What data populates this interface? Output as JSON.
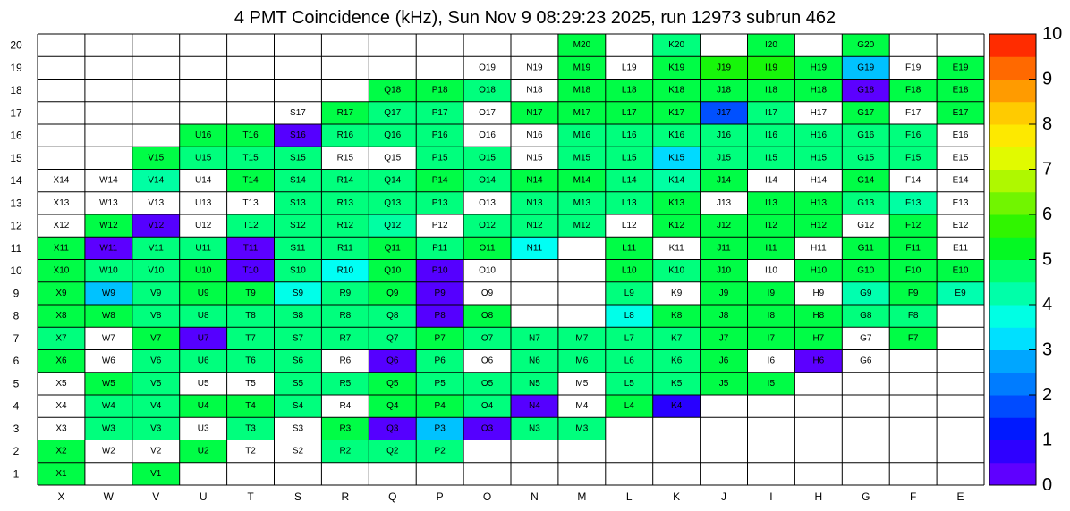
{
  "chart_data": {
    "type": "heatmap",
    "title": "4 PMT Coincidence (kHz), Sun Nov  9 08:29:23 2025, run 12973 subrun 462",
    "x_categories": [
      "X",
      "W",
      "V",
      "U",
      "T",
      "S",
      "R",
      "Q",
      "P",
      "O",
      "N",
      "M",
      "L",
      "K",
      "J",
      "I",
      "H",
      "G",
      "F",
      "E"
    ],
    "y_categories": [
      "1",
      "2",
      "3",
      "4",
      "5",
      "6",
      "7",
      "8",
      "9",
      "10",
      "11",
      "12",
      "13",
      "14",
      "15",
      "16",
      "17",
      "18",
      "19",
      "20"
    ],
    "color_scale": {
      "min": 0,
      "max": 10,
      "ticks": [
        "0",
        "1",
        "2",
        "3",
        "4",
        "5",
        "6",
        "7",
        "8",
        "9",
        "10"
      ]
    },
    "cells": {
      "20": {
        "M": 5,
        "K": 4.6,
        "I": 5,
        "G": 5
      },
      "19": {
        "O": 0,
        "N": 0,
        "M": 5,
        "L": 0,
        "K": 5,
        "J": 5.5,
        "I": 5.5,
        "H": 5,
        "G": 3,
        "F": 0,
        "E": 5
      },
      "18": {
        "Q": 5,
        "P": 5,
        "O": 4.6,
        "N": 0,
        "M": 5,
        "L": 5,
        "K": 5,
        "J": 5,
        "I": 5,
        "H": 5,
        "G": 0.3,
        "F": 5,
        "E": 5
      },
      "17": {
        "S": 0,
        "R": 5,
        "Q": 4.6,
        "P": 4.6,
        "O": 0,
        "N": 5,
        "M": 5,
        "L": 5,
        "K": 5,
        "J": 1.8,
        "I": 4.6,
        "H": 0,
        "G": 5,
        "F": 0,
        "E": 5
      },
      "16": {
        "U": 5,
        "T": 5,
        "S": 0.4,
        "R": 4.6,
        "Q": 4.6,
        "P": 4.6,
        "O": 0,
        "N": 0,
        "M": 4.6,
        "L": 4.6,
        "K": 4.6,
        "J": 4.6,
        "I": 4.6,
        "H": 4.6,
        "G": 4.6,
        "F": 4.6,
        "E": 0
      },
      "15": {
        "V": 5,
        "U": 4.6,
        "T": 4.6,
        "S": 4.6,
        "R": 0,
        "Q": 0,
        "P": 4.6,
        "O": 4.6,
        "N": 0,
        "M": 4.6,
        "L": 4.6,
        "K": 3.2,
        "J": 4.6,
        "I": 4.6,
        "H": 4.6,
        "G": 4.6,
        "F": 4.6,
        "E": 0
      },
      "14": {
        "X": 0,
        "W": 0,
        "V": 4.3,
        "U": 0,
        "T": 5,
        "S": 4.6,
        "R": 4.6,
        "Q": 4.6,
        "P": 5,
        "O": 4.6,
        "N": 5,
        "M": 5,
        "L": 4.6,
        "K": 4.3,
        "J": 5,
        "I": 0,
        "H": 0,
        "G": 5,
        "F": 0,
        "E": 0
      },
      "13": {
        "X": 0,
        "W": 0,
        "V": 0,
        "U": 0,
        "T": 0,
        "S": 4.6,
        "R": 4.6,
        "Q": 4.6,
        "P": 4.6,
        "O": 0,
        "N": 4.6,
        "M": 4.6,
        "L": 4.6,
        "K": 5,
        "J": 0,
        "I": 5,
        "H": 5,
        "G": 4.6,
        "F": 4.3,
        "E": 0
      },
      "12": {
        "X": 0,
        "W": 5,
        "V": 0.4,
        "U": 0,
        "T": 4.6,
        "S": 4.6,
        "R": 4.6,
        "Q": 4.3,
        "P": 0,
        "O": 4.6,
        "N": 4.6,
        "M": 4.6,
        "L": 0,
        "K": 5,
        "J": 5,
        "I": 5,
        "H": 5,
        "G": 0,
        "F": 5,
        "E": 0
      },
      "11": {
        "X": 5,
        "W": 0.3,
        "V": 4.6,
        "U": 4.6,
        "T": 0.3,
        "S": 4.6,
        "R": 4.6,
        "Q": 5,
        "P": 4.6,
        "O": 5,
        "N": 3.6,
        "L": 5,
        "K": 0,
        "J": 5,
        "I": 5,
        "H": 0,
        "G": 5,
        "F": 5,
        "E": 0
      },
      "10": {
        "X": 5,
        "W": 4.6,
        "V": 4.6,
        "U": 5,
        "T": 0.4,
        "S": 4.6,
        "R": 3.6,
        "Q": 5,
        "P": 0.4,
        "O": 0,
        "L": 5,
        "K": 4.6,
        "J": 5,
        "I": 0,
        "H": 5,
        "G": 5,
        "F": 5,
        "E": 5
      },
      "9": {
        "X": 5,
        "W": 3.0,
        "V": 4.6,
        "U": 5,
        "T": 5,
        "S": 3.7,
        "R": 4.6,
        "Q": 5,
        "P": 0.4,
        "O": 0,
        "L": 4.6,
        "K": 0,
        "J": 5,
        "I": 5,
        "H": 0,
        "G": 4.2,
        "F": 5,
        "E": 4.2
      },
      "8": {
        "X": 5,
        "W": 5,
        "V": 4.6,
        "U": 4.6,
        "T": 4.6,
        "S": 4.6,
        "R": 4.6,
        "Q": 4.6,
        "P": 0.4,
        "O": 5,
        "L": 3.7,
        "K": 5,
        "J": 5,
        "I": 5,
        "H": 5,
        "G": 4.6,
        "F": 4.6
      },
      "7": {
        "X": 4.6,
        "W": 0,
        "V": 5,
        "U": 0.4,
        "T": 4.6,
        "S": 4.6,
        "R": 4.6,
        "Q": 4.6,
        "P": 5,
        "O": 4.6,
        "N": 4.6,
        "M": 4.6,
        "L": 4.6,
        "K": 4.6,
        "J": 5,
        "I": 5,
        "H": 5,
        "G": 0,
        "F": 5
      },
      "6": {
        "X": 5,
        "W": 0,
        "V": 4.6,
        "U": 4.6,
        "T": 4.6,
        "S": 4.6,
        "R": 0,
        "Q": 0.4,
        "P": 4.6,
        "O": 0,
        "N": 4.6,
        "M": 4.6,
        "L": 4.6,
        "K": 4.6,
        "J": 5,
        "I": 0,
        "H": 0.3,
        "G": 0
      },
      "5": {
        "X": 0,
        "W": 5,
        "V": 4.6,
        "U": 0,
        "T": 0,
        "S": 4.6,
        "R": 4.6,
        "Q": 5,
        "P": 4.6,
        "O": 4.6,
        "N": 4.6,
        "M": 0,
        "L": 4.6,
        "K": 4.6,
        "J": 5,
        "I": 5
      },
      "4": {
        "X": 0,
        "W": 4.6,
        "V": 4.6,
        "U": 5,
        "T": 5,
        "S": 4.6,
        "R": 0,
        "Q": 5,
        "P": 5,
        "O": 4.6,
        "N": 0.4,
        "M": 0,
        "L": 5,
        "K": 0.8
      },
      "3": {
        "X": 0,
        "W": 4.6,
        "V": 4.6,
        "U": 0,
        "T": 4.6,
        "S": 0,
        "R": 5,
        "Q": 0.4,
        "P": 3.0,
        "O": 0.4,
        "N": 4.6,
        "M": 4.6
      },
      "2": {
        "X": 5,
        "W": 0,
        "V": 0,
        "U": 5,
        "T": 0,
        "S": 0,
        "R": 4.6,
        "Q": 4.6,
        "P": 4.6
      },
      "1": {
        "X": 5,
        "V": 5
      }
    }
  }
}
